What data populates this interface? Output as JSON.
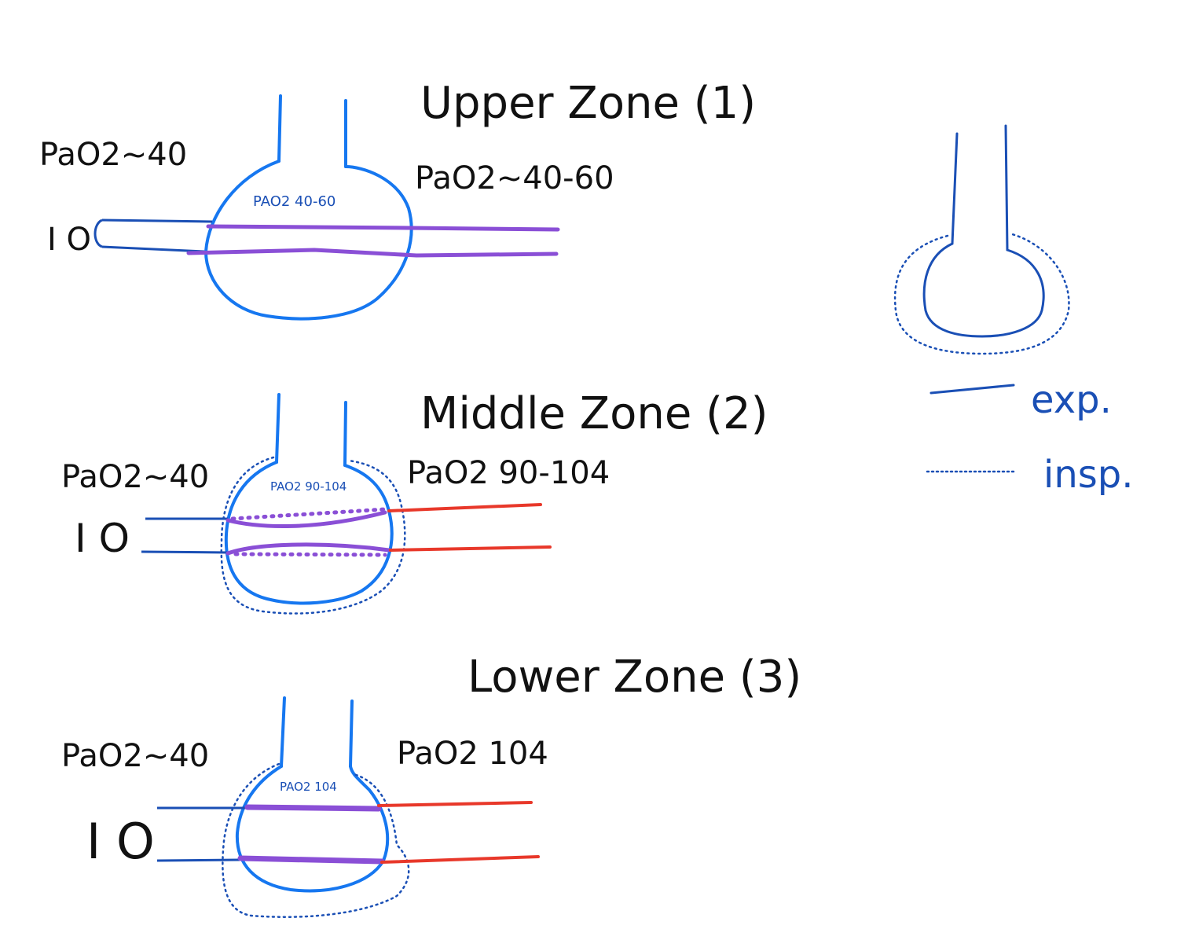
{
  "colors": {
    "ink": "#111111",
    "alveolus": "#1677f0",
    "vessel_blue": "#1a4fb5",
    "capillary": "#8a4fd6",
    "artery": "#e8382a",
    "legend": "#1a4fb5"
  },
  "zones": [
    {
      "title": "Upper Zone (1)",
      "venous_label": "PaO2~40",
      "arterial_label": "PaO2~40-60",
      "alveolar_label": "PAO2 40-60",
      "vessel_marker": "I O"
    },
    {
      "title": "Middle Zone (2)",
      "venous_label": "PaO2~40",
      "arterial_label": "PaO2 90-104",
      "alveolar_label": "PAO2 90-104",
      "vessel_marker": "I O"
    },
    {
      "title": "Lower Zone (3)",
      "venous_label": "PaO2~40",
      "arterial_label": "PaO2 104",
      "alveolar_label": "PAO2 104",
      "vessel_marker": "I O"
    }
  ],
  "legend": {
    "expiration_label": "exp.",
    "inspiration_label": "insp."
  }
}
